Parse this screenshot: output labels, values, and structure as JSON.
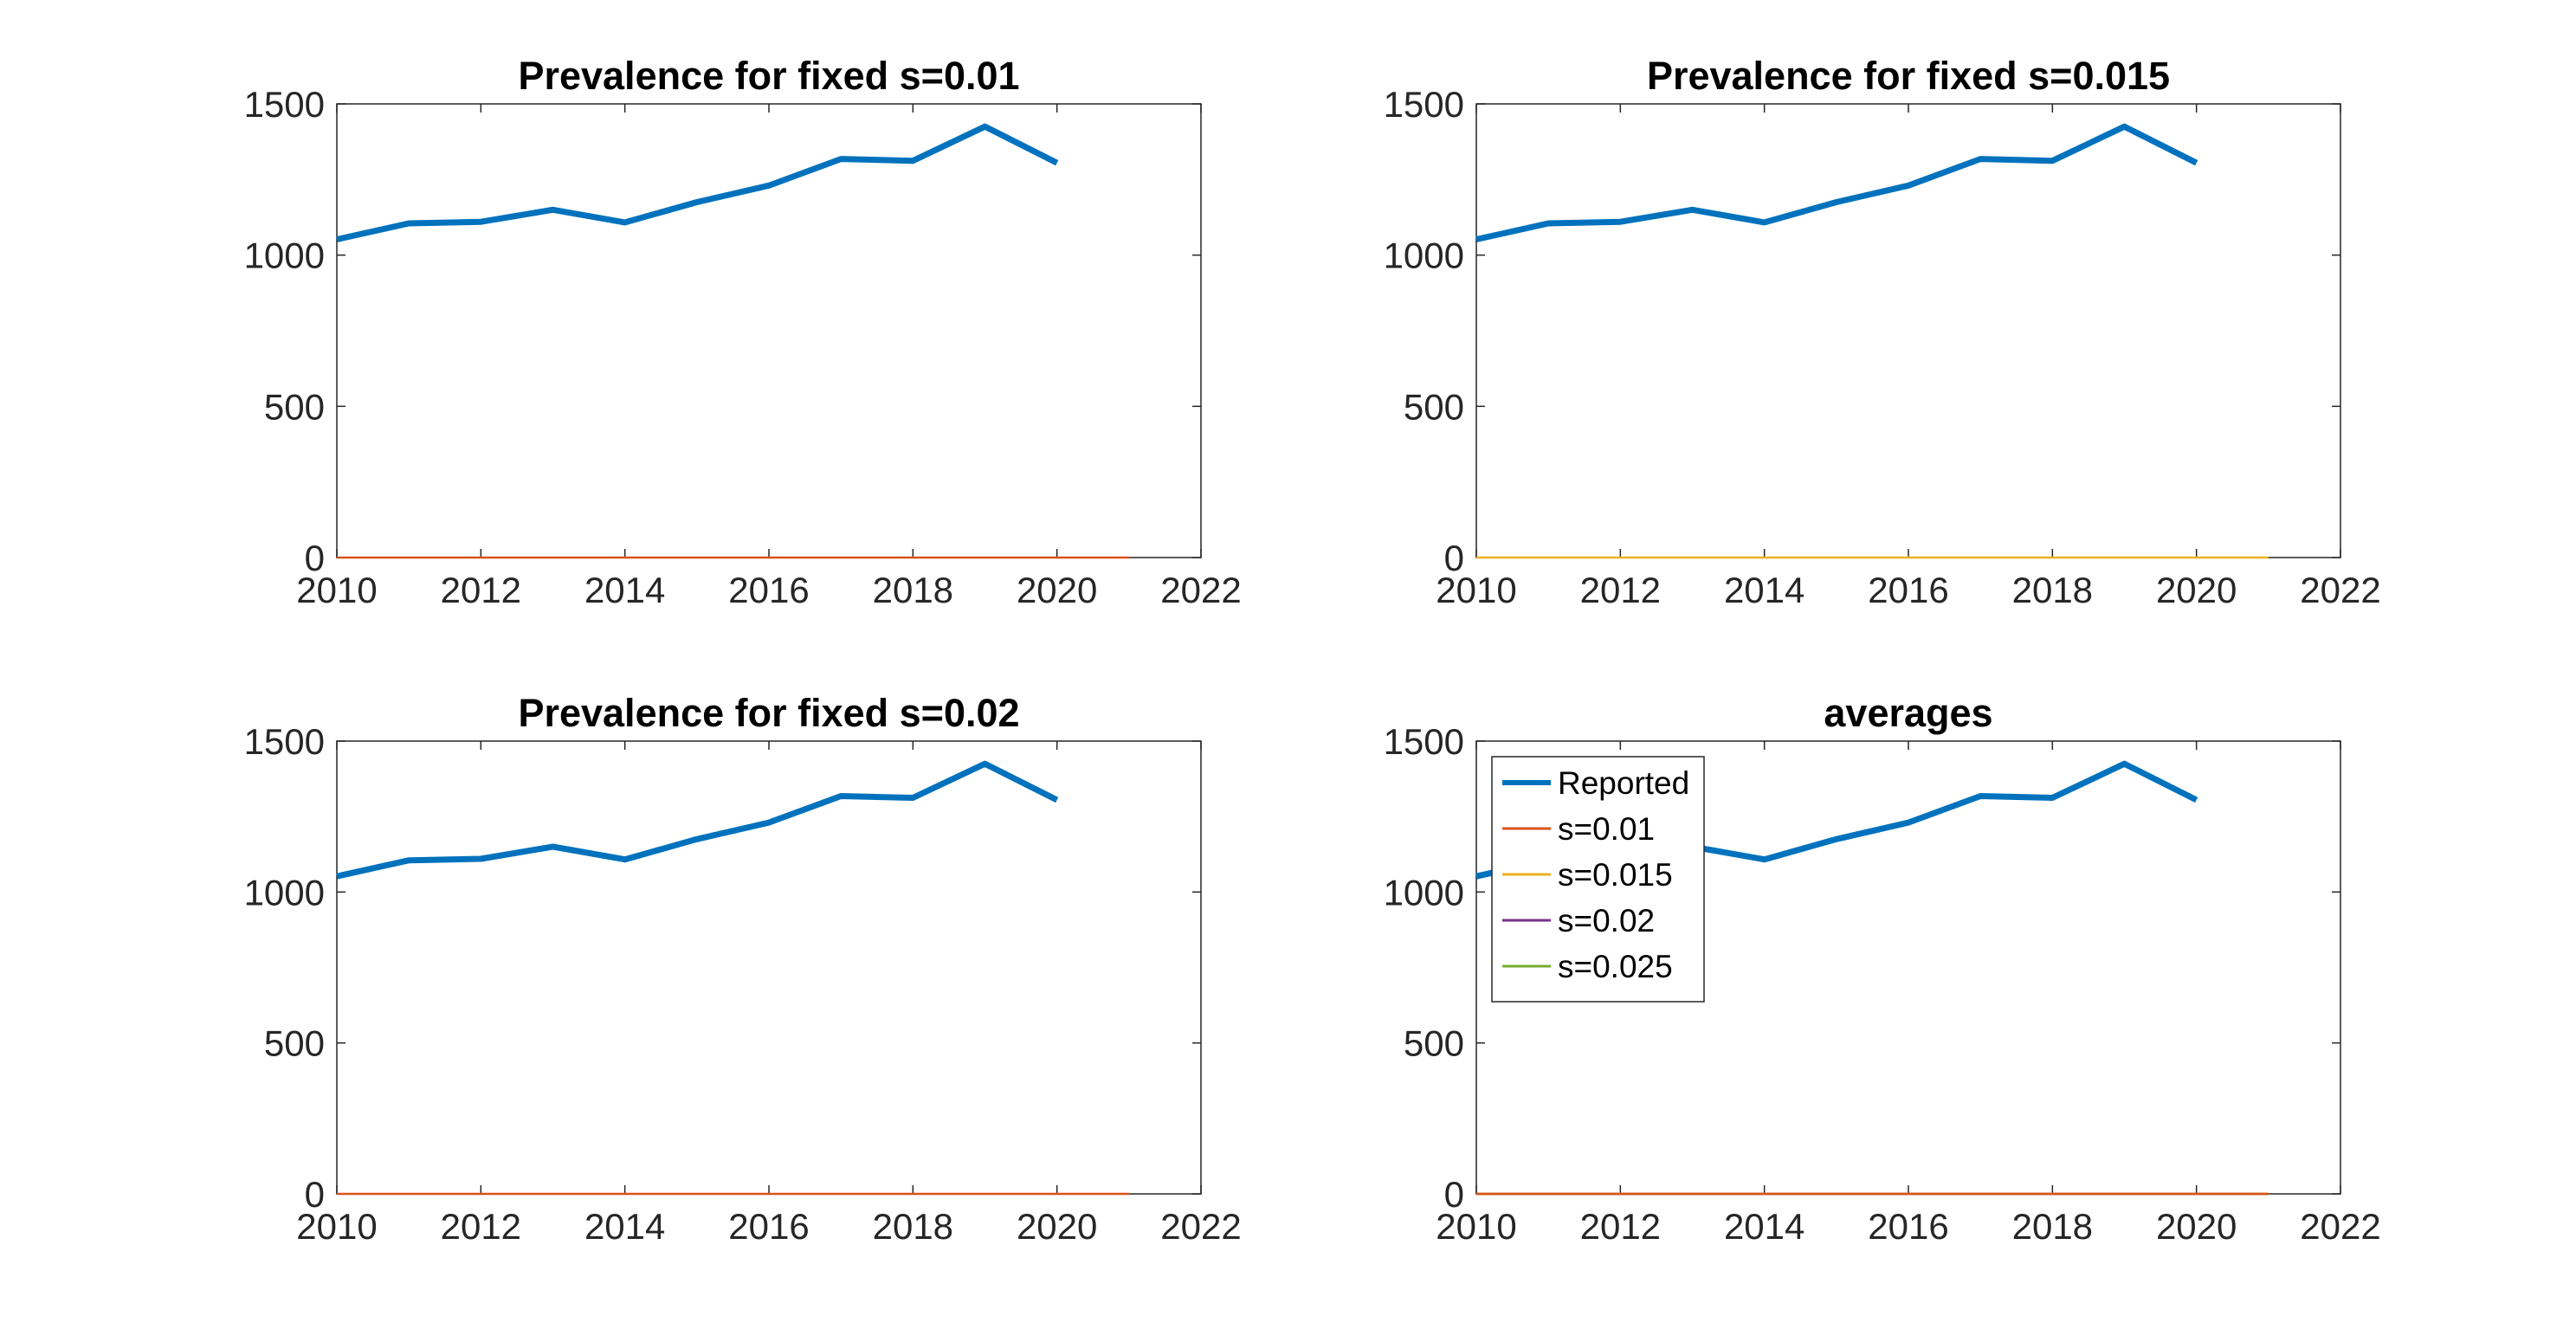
{
  "chart_data": [
    {
      "type": "line",
      "title": "Prevalence for fixed s=0.01",
      "xlim": [
        2010,
        2022
      ],
      "ylim": [
        0,
        1500
      ],
      "xticks": [
        2010,
        2012,
        2014,
        2016,
        2018,
        2020,
        2022
      ],
      "yticks": [
        0,
        500,
        1000,
        1500
      ],
      "grid": false,
      "series": [
        {
          "color": "#0072BD",
          "x": [
            2010,
            2011,
            2012,
            2013,
            2014,
            2015,
            2016,
            2017,
            2018,
            2019,
            2020
          ],
          "y": [
            1052,
            1105,
            1110,
            1150,
            1108,
            1175,
            1230,
            1318,
            1312,
            1425,
            1305
          ]
        },
        {
          "color": "#D95319",
          "x": [
            2010,
            2011,
            2012,
            2013,
            2014,
            2015,
            2016,
            2017,
            2018,
            2019,
            2020,
            2021
          ],
          "y": [
            0,
            0,
            0,
            0,
            0,
            0,
            0,
            0,
            0,
            0,
            0,
            0
          ]
        }
      ]
    },
    {
      "type": "line",
      "title": "Prevalence for fixed s=0.015",
      "xlim": [
        2010,
        2022
      ],
      "ylim": [
        0,
        1500
      ],
      "xticks": [
        2010,
        2012,
        2014,
        2016,
        2018,
        2020,
        2022
      ],
      "yticks": [
        0,
        500,
        1000,
        1500
      ],
      "grid": false,
      "series": [
        {
          "color": "#0072BD",
          "x": [
            2010,
            2011,
            2012,
            2013,
            2014,
            2015,
            2016,
            2017,
            2018,
            2019,
            2020
          ],
          "y": [
            1052,
            1105,
            1110,
            1150,
            1108,
            1175,
            1230,
            1318,
            1312,
            1425,
            1305
          ]
        },
        {
          "color": "#EDB120",
          "x": [
            2010,
            2011,
            2012,
            2013,
            2014,
            2015,
            2016,
            2017,
            2018,
            2019,
            2020,
            2021
          ],
          "y": [
            0,
            0,
            0,
            0,
            0,
            0,
            0,
            0,
            0,
            0,
            0,
            0
          ]
        }
      ]
    },
    {
      "type": "line",
      "title": "Prevalence for fixed s=0.02",
      "xlim": [
        2010,
        2022
      ],
      "ylim": [
        0,
        1500
      ],
      "xticks": [
        2010,
        2012,
        2014,
        2016,
        2018,
        2020,
        2022
      ],
      "yticks": [
        0,
        500,
        1000,
        1500
      ],
      "grid": false,
      "series": [
        {
          "color": "#0072BD",
          "x": [
            2010,
            2011,
            2012,
            2013,
            2014,
            2015,
            2016,
            2017,
            2018,
            2019,
            2020
          ],
          "y": [
            1052,
            1105,
            1110,
            1150,
            1108,
            1175,
            1230,
            1318,
            1312,
            1425,
            1305
          ]
        },
        {
          "color": "#D95319",
          "x": [
            2010,
            2011,
            2012,
            2013,
            2014,
            2015,
            2016,
            2017,
            2018,
            2019,
            2020,
            2021
          ],
          "y": [
            0,
            0,
            0,
            0,
            0,
            0,
            0,
            0,
            0,
            0,
            0,
            0
          ]
        }
      ]
    },
    {
      "type": "line",
      "title": "averages",
      "xlim": [
        2010,
        2022
      ],
      "ylim": [
        0,
        1500
      ],
      "xticks": [
        2010,
        2012,
        2014,
        2016,
        2018,
        2020,
        2022
      ],
      "yticks": [
        0,
        500,
        1000,
        1500
      ],
      "grid": false,
      "legend": "top-left",
      "series": [
        {
          "name": "Reported",
          "color": "#0072BD",
          "x": [
            2010,
            2011,
            2012,
            2013,
            2014,
            2015,
            2016,
            2017,
            2018,
            2019,
            2020
          ],
          "y": [
            1052,
            1105,
            1110,
            1150,
            1108,
            1175,
            1230,
            1318,
            1312,
            1425,
            1305
          ]
        },
        {
          "name": "s=0.01",
          "color": "#D95319",
          "x": [
            2010,
            2011,
            2012,
            2013,
            2014,
            2015,
            2016,
            2017,
            2018,
            2019,
            2020,
            2021
          ],
          "y": [
            0,
            0,
            0,
            0,
            0,
            0,
            0,
            0,
            0,
            0,
            0,
            0
          ]
        },
        {
          "name": "s=0.015",
          "color": "#EDB120",
          "x": [
            2010,
            2011,
            2012,
            2013,
            2014,
            2015,
            2016,
            2017,
            2018,
            2019,
            2020,
            2021
          ],
          "y": [
            0,
            0,
            0,
            0,
            0,
            0,
            0,
            0,
            0,
            0,
            0,
            0
          ]
        },
        {
          "name": "s=0.02",
          "color": "#7E2F8E",
          "x": [
            2010,
            2011,
            2012,
            2013,
            2014,
            2015,
            2016,
            2017,
            2018,
            2019,
            2020,
            2021
          ],
          "y": [
            0,
            0,
            0,
            0,
            0,
            0,
            0,
            0,
            0,
            0,
            0,
            0
          ]
        },
        {
          "name": "s=0.025",
          "color": "#77AC30",
          "x": [
            2010,
            2011,
            2012,
            2013,
            2014,
            2015,
            2016,
            2017,
            2018,
            2019,
            2020,
            2021
          ],
          "y": [
            0,
            0,
            0,
            0,
            0,
            0,
            0,
            0,
            0,
            0,
            0,
            0
          ]
        }
      ]
    }
  ]
}
